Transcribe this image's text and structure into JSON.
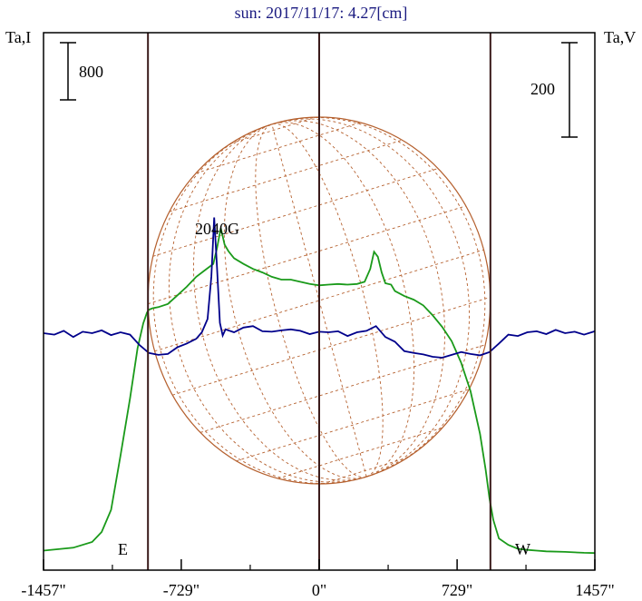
{
  "chart_data": {
    "type": "line",
    "title": "sun: 2017/11/17: 4.27[cm]",
    "left_axis_label": "Ta,I",
    "right_axis_label": "Ta,V",
    "left_scale_bar_label": "800",
    "right_scale_bar_label": "200",
    "x_tick_labels": [
      "-1457\"",
      "-729\"",
      "0\"",
      "729\"",
      "1457\""
    ],
    "x_ticks": [
      -1457,
      -729,
      0,
      729,
      1457
    ],
    "xlim": [
      -1457,
      1457
    ],
    "limb_labels": {
      "east": "E",
      "west": "W"
    },
    "limb_positions": [
      -905,
      0,
      905
    ],
    "annotation": {
      "text": "2040G",
      "x": -500
    },
    "colors": {
      "stokes_I": "#1a9a1a",
      "stokes_V": "#00008b",
      "disk": "#b5602e",
      "frame": "#000000",
      "limb_lines": "#3a1a1a"
    },
    "grid": false,
    "series": [
      {
        "key": "stokes_I",
        "x": [
          -1457,
          -1300,
          -1200,
          -1150,
          -1100,
          -1050,
          -1000,
          -960,
          -930,
          -910,
          -900,
          -880,
          -850,
          -800,
          -750,
          -700,
          -650,
          -600,
          -560,
          -540,
          -520,
          -500,
          -480,
          -450,
          -400,
          -350,
          -300,
          -250,
          -200,
          -150,
          -100,
          -50,
          0,
          50,
          100,
          150,
          200,
          240,
          270,
          290,
          310,
          330,
          350,
          380,
          400,
          450,
          500,
          550,
          600,
          650,
          700,
          750,
          800,
          850,
          880,
          900,
          920,
          950,
          1000,
          1050,
          1100,
          1150,
          1200,
          1300,
          1400,
          1457
        ],
        "y": [
          70,
          110,
          190,
          330,
          640,
          1400,
          2200,
          2900,
          3250,
          3400,
          3440,
          3460,
          3475,
          3520,
          3640,
          3760,
          3900,
          4000,
          4080,
          4300,
          4580,
          4350,
          4260,
          4160,
          4080,
          4010,
          3960,
          3900,
          3860,
          3860,
          3830,
          3800,
          3780,
          3790,
          3800,
          3790,
          3800,
          3830,
          4010,
          4250,
          4180,
          3960,
          3810,
          3790,
          3700,
          3630,
          3580,
          3500,
          3360,
          3200,
          3000,
          2700,
          2300,
          1700,
          1200,
          800,
          500,
          240,
          150,
          95,
          80,
          70,
          60,
          52,
          40,
          35
        ]
      },
      {
        "key": "stokes_V",
        "x": [
          -1457,
          -1400,
          -1350,
          -1300,
          -1250,
          -1200,
          -1150,
          -1100,
          -1050,
          -1000,
          -950,
          -900,
          -850,
          -800,
          -750,
          -700,
          -650,
          -620,
          -590,
          -570,
          -555,
          -540,
          -525,
          -510,
          -495,
          -480,
          -450,
          -400,
          -350,
          -300,
          -250,
          -200,
          -150,
          -100,
          -50,
          0,
          50,
          100,
          150,
          200,
          250,
          300,
          350,
          400,
          450,
          500,
          550,
          600,
          650,
          700,
          750,
          800,
          850,
          900,
          950,
          1000,
          1050,
          1100,
          1150,
          1200,
          1250,
          1300,
          1350,
          1400,
          1457
        ],
        "y": [
          0,
          -3,
          5,
          -8,
          3,
          0,
          6,
          -4,
          2,
          -3,
          -25,
          -42,
          -46,
          -44,
          -30,
          -22,
          -12,
          2,
          30,
          120,
          245,
          140,
          22,
          -5,
          8,
          6,
          2,
          12,
          15,
          4,
          3,
          6,
          8,
          5,
          -2,
          3,
          2,
          4,
          -6,
          2,
          5,
          15,
          -8,
          -18,
          -38,
          -42,
          -45,
          -50,
          -52,
          -46,
          -40,
          -44,
          -47,
          -40,
          -22,
          -3,
          -6,
          2,
          4,
          -2,
          7,
          0,
          3,
          -3,
          4
        ]
      }
    ],
    "scales": {
      "stokes_I_per_bar": 800,
      "stokes_V_per_bar": 200
    }
  }
}
